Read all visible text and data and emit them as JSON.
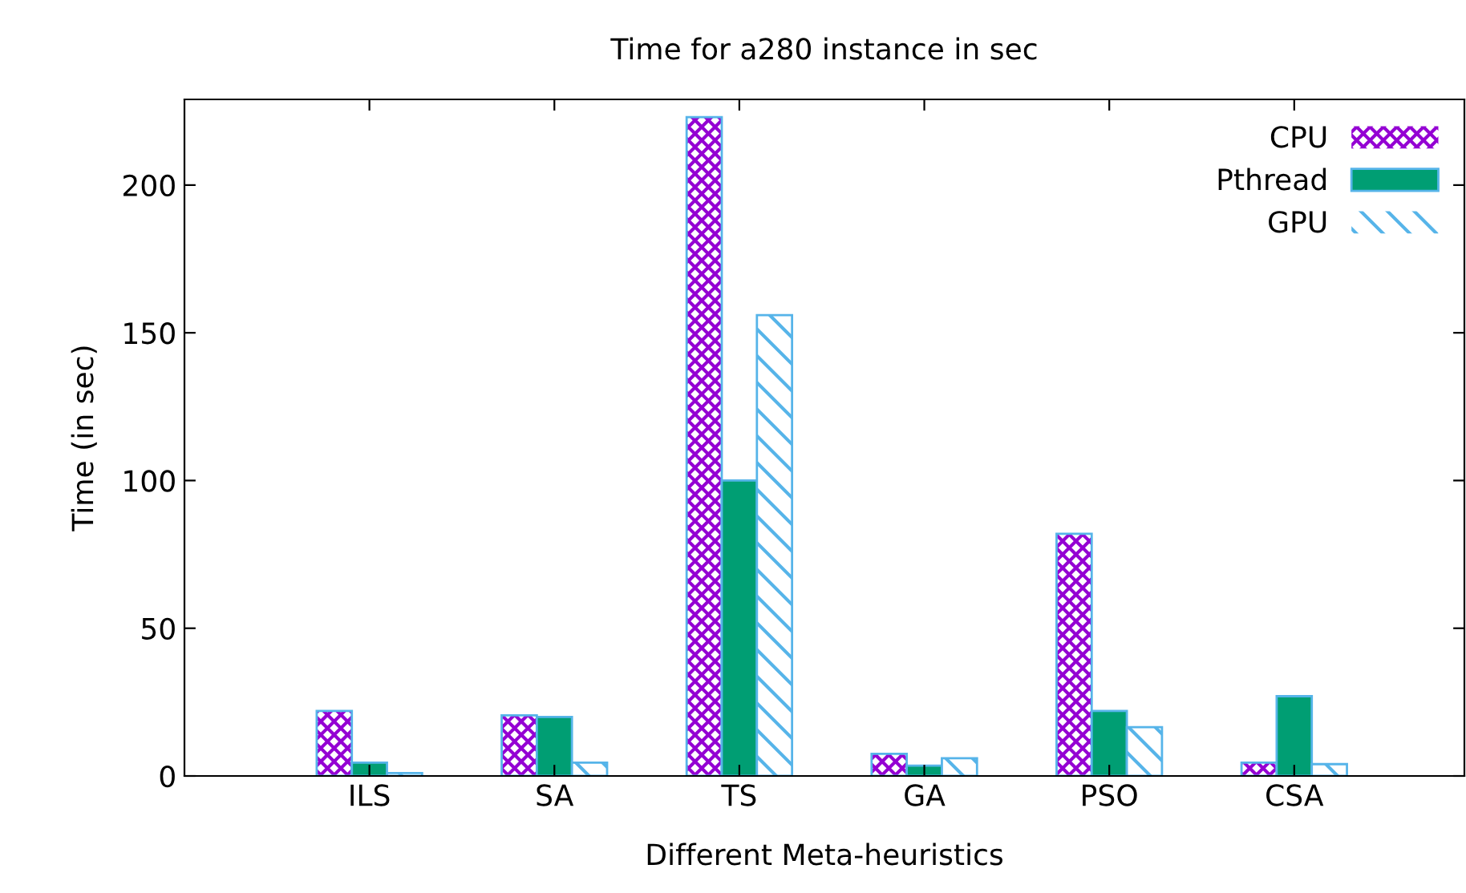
{
  "chart_data": {
    "type": "bar",
    "title": "Time for a280 instance in sec",
    "xlabel": "Different Meta-heuristics",
    "ylabel": "Time (in sec)",
    "categories": [
      "ILS",
      "SA",
      "TS",
      "GA",
      "PSO",
      "CSA"
    ],
    "series": [
      {
        "name": "CPU",
        "color": "#9400d3",
        "values": [
          22,
          20.5,
          223,
          7.5,
          82,
          4.5
        ]
      },
      {
        "name": "Pthread",
        "color": "#009e73",
        "values": [
          4.5,
          20,
          100,
          3.5,
          22,
          27
        ]
      },
      {
        "name": "GPU",
        "color": "#56b4e9",
        "values": [
          1,
          4.5,
          156,
          6,
          16.5,
          4
        ]
      }
    ],
    "ylim": [
      0,
      229
    ],
    "yticks": [
      0,
      50,
      100,
      150,
      200
    ],
    "grid": false,
    "legend": "top right"
  }
}
